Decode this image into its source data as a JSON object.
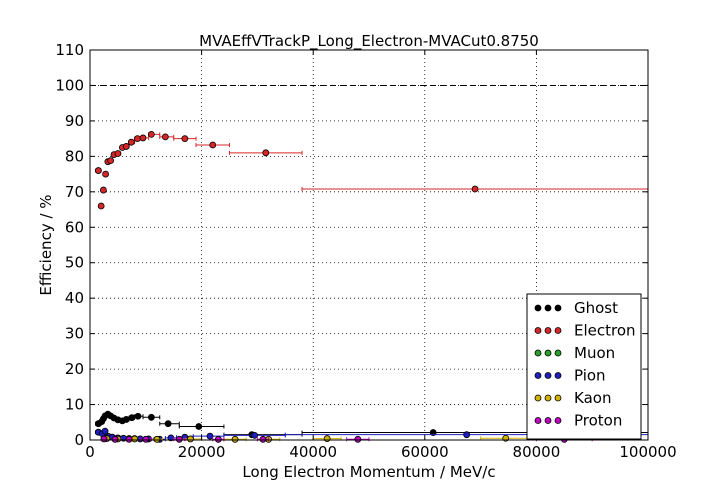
{
  "chart_data": {
    "type": "scatter",
    "title": "MVAEffVTrackP_Long_Electron-MVACut0.8750",
    "xlabel": "Long Electron Momentum / MeV/c",
    "ylabel": "Efficiency / %",
    "xlim": [
      0,
      100000
    ],
    "ylim": [
      0,
      110
    ],
    "x_ticks": [
      "0",
      "20000",
      "40000",
      "60000",
      "80000",
      "100000"
    ],
    "y_ticks": [
      "0",
      "10",
      "20",
      "30",
      "40",
      "50",
      "60",
      "70",
      "80",
      "90",
      "100",
      "110"
    ],
    "grid": true,
    "reference_line": 100,
    "legend_position": "lower-right",
    "series": [
      {
        "name": "Ghost",
        "color": "#000000",
        "points": [
          {
            "x": 1500,
            "y": 4.6,
            "xlo": 1000,
            "xhi": 2000
          },
          {
            "x": 2100,
            "y": 5.2,
            "xlo": 2000,
            "xhi": 2250
          },
          {
            "x": 2400,
            "y": 6.0,
            "xlo": 2250,
            "xhi": 2500
          },
          {
            "x": 2700,
            "y": 6.8,
            "xlo": 2500,
            "xhi": 3000
          },
          {
            "x": 3200,
            "y": 7.3,
            "xlo": 3000,
            "xhi": 3500
          },
          {
            "x": 3700,
            "y": 6.8,
            "xlo": 3500,
            "xhi": 4000
          },
          {
            "x": 4300,
            "y": 6.2,
            "xlo": 4000,
            "xhi": 4600
          },
          {
            "x": 5000,
            "y": 5.7,
            "xlo": 4600,
            "xhi": 5500
          },
          {
            "x": 5800,
            "y": 5.4,
            "xlo": 5500,
            "xhi": 6200
          },
          {
            "x": 6500,
            "y": 5.8,
            "xlo": 6200,
            "xhi": 7000
          },
          {
            "x": 7500,
            "y": 6.3,
            "xlo": 7000,
            "xhi": 8000
          },
          {
            "x": 8600,
            "y": 6.7,
            "xlo": 8000,
            "xhi": 9500
          },
          {
            "x": 11000,
            "y": 6.4,
            "xlo": 9500,
            "xhi": 12500
          },
          {
            "x": 14000,
            "y": 4.6,
            "xlo": 12500,
            "xhi": 16000
          },
          {
            "x": 19500,
            "y": 3.8,
            "xlo": 16000,
            "xhi": 24000
          },
          {
            "x": 29000,
            "y": 1.5,
            "xlo": 24000,
            "xhi": 38000
          },
          {
            "x": 61500,
            "y": 2.1,
            "xlo": 38000,
            "xhi": 100000
          }
        ]
      },
      {
        "name": "Electron",
        "color": "#d62728",
        "points": [
          {
            "x": 1500,
            "y": 76.0,
            "xlo": 1000,
            "xhi": 2000
          },
          {
            "x": 2000,
            "y": 66.0,
            "xlo": 1800,
            "xhi": 2200
          },
          {
            "x": 2400,
            "y": 70.5,
            "xlo": 2200,
            "xhi": 2600
          },
          {
            "x": 2800,
            "y": 75.0,
            "xlo": 2600,
            "xhi": 3000
          },
          {
            "x": 3200,
            "y": 78.5,
            "xlo": 3000,
            "xhi": 3500
          },
          {
            "x": 3700,
            "y": 78.8,
            "xlo": 3500,
            "xhi": 4000
          },
          {
            "x": 4300,
            "y": 80.5,
            "xlo": 4000,
            "xhi": 4600
          },
          {
            "x": 5000,
            "y": 80.8,
            "xlo": 4600,
            "xhi": 5500
          },
          {
            "x": 5800,
            "y": 82.5,
            "xlo": 5500,
            "xhi": 6200
          },
          {
            "x": 6500,
            "y": 82.8,
            "xlo": 6200,
            "xhi": 7000
          },
          {
            "x": 7400,
            "y": 84.0,
            "xlo": 7000,
            "xhi": 8000
          },
          {
            "x": 8500,
            "y": 85.0,
            "xlo": 8000,
            "xhi": 9000
          },
          {
            "x": 9500,
            "y": 85.2,
            "xlo": 9000,
            "xhi": 10500
          },
          {
            "x": 11000,
            "y": 86.2,
            "xlo": 10500,
            "xhi": 12500
          },
          {
            "x": 13500,
            "y": 85.5,
            "xlo": 12500,
            "xhi": 15000
          },
          {
            "x": 17000,
            "y": 85.0,
            "xlo": 15000,
            "xhi": 19000
          },
          {
            "x": 22000,
            "y": 83.2,
            "xlo": 19000,
            "xhi": 25000
          },
          {
            "x": 31500,
            "y": 81.0,
            "xlo": 25000,
            "xhi": 38000
          },
          {
            "x": 69000,
            "y": 70.8,
            "xlo": 38000,
            "xhi": 100000
          }
        ]
      },
      {
        "name": "Muon",
        "color": "#2ca02c",
        "points": []
      },
      {
        "name": "Pion",
        "color": "#1f1fbf",
        "points": [
          {
            "x": 1500,
            "y": 2.2,
            "xlo": 1000,
            "xhi": 2000
          },
          {
            "x": 2200,
            "y": 1.8,
            "xlo": 2000,
            "xhi": 2500
          },
          {
            "x": 2700,
            "y": 2.5,
            "xlo": 2500,
            "xhi": 3000
          },
          {
            "x": 3300,
            "y": 1.0,
            "xlo": 3000,
            "xhi": 3600
          },
          {
            "x": 4000,
            "y": 0.8,
            "xlo": 3600,
            "xhi": 4500
          },
          {
            "x": 5000,
            "y": 0.6,
            "xlo": 4500,
            "xhi": 5500
          },
          {
            "x": 6000,
            "y": 0.5,
            "xlo": 5500,
            "xhi": 6500
          },
          {
            "x": 7000,
            "y": 0.4,
            "xlo": 6500,
            "xhi": 7500
          },
          {
            "x": 8000,
            "y": 0.4,
            "xlo": 7500,
            "xhi": 8500
          },
          {
            "x": 9000,
            "y": 0.3,
            "xlo": 8500,
            "xhi": 9500
          },
          {
            "x": 10500,
            "y": 0.3,
            "xlo": 9500,
            "xhi": 11500
          },
          {
            "x": 12500,
            "y": 0.2,
            "xlo": 11500,
            "xhi": 13500
          },
          {
            "x": 14500,
            "y": 0.6,
            "xlo": 13500,
            "xhi": 15500
          },
          {
            "x": 17000,
            "y": 0.8,
            "xlo": 15500,
            "xhi": 18500
          },
          {
            "x": 21500,
            "y": 1.1,
            "xlo": 18500,
            "xhi": 24000
          },
          {
            "x": 29500,
            "y": 1.3,
            "xlo": 24000,
            "xhi": 35000
          },
          {
            "x": 67500,
            "y": 1.5,
            "xlo": 35000,
            "xhi": 100000
          }
        ]
      },
      {
        "name": "Kaon",
        "color": "#d4b300",
        "points": [
          {
            "x": 3000,
            "y": 0.4,
            "xlo": 2500,
            "xhi": 3500
          },
          {
            "x": 5000,
            "y": 0.3,
            "xlo": 4500,
            "xhi": 5500
          },
          {
            "x": 8000,
            "y": 0.3,
            "xlo": 7500,
            "xhi": 8500
          },
          {
            "x": 12000,
            "y": 0.2,
            "xlo": 11000,
            "xhi": 13000
          },
          {
            "x": 18000,
            "y": 0.3,
            "xlo": 16000,
            "xhi": 20000
          },
          {
            "x": 26000,
            "y": 0.2,
            "xlo": 24000,
            "xhi": 28000
          },
          {
            "x": 32000,
            "y": 0.2,
            "xlo": 30000,
            "xhi": 34000
          },
          {
            "x": 42500,
            "y": 0.4,
            "xlo": 40000,
            "xhi": 45000
          },
          {
            "x": 74500,
            "y": 0.5,
            "xlo": 70000,
            "xhi": 80000
          }
        ]
      },
      {
        "name": "Proton",
        "color": "#c000c0",
        "points": [
          {
            "x": 2500,
            "y": 0.3,
            "xlo": 2000,
            "xhi": 3000
          },
          {
            "x": 4500,
            "y": 0.2,
            "xlo": 4000,
            "xhi": 5000
          },
          {
            "x": 7000,
            "y": 0.2,
            "xlo": 6500,
            "xhi": 7500
          },
          {
            "x": 10000,
            "y": 0.2,
            "xlo": 9000,
            "xhi": 11000
          },
          {
            "x": 16000,
            "y": 0.2,
            "xlo": 15000,
            "xhi": 17000
          },
          {
            "x": 23000,
            "y": 0.2,
            "xlo": 22000,
            "xhi": 24000
          },
          {
            "x": 31000,
            "y": 0.2,
            "xlo": 30000,
            "xhi": 32000
          },
          {
            "x": 48000,
            "y": 0.2,
            "xlo": 46000,
            "xhi": 50000
          },
          {
            "x": 85000,
            "y": 0.2,
            "xlo": 80000,
            "xhi": 90000
          }
        ]
      }
    ]
  }
}
